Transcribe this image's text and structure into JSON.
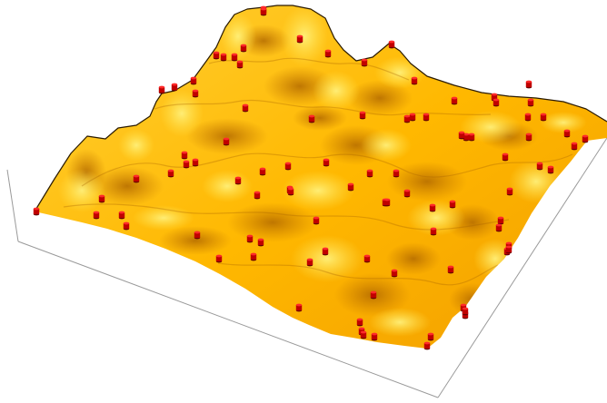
{
  "scene": {
    "colors": {
      "background": "#ffffff",
      "surface_light": "#ffe24a",
      "surface_mid": "#ffb400",
      "surface_dark": "#c67800",
      "surface_outline": "#2a1a00",
      "marker": "#c00000",
      "marker_highlight": "#ff2a2a",
      "box_edge": "#9a9a9a"
    },
    "marker_shape": "cylinder",
    "marker_count": 95
  }
}
